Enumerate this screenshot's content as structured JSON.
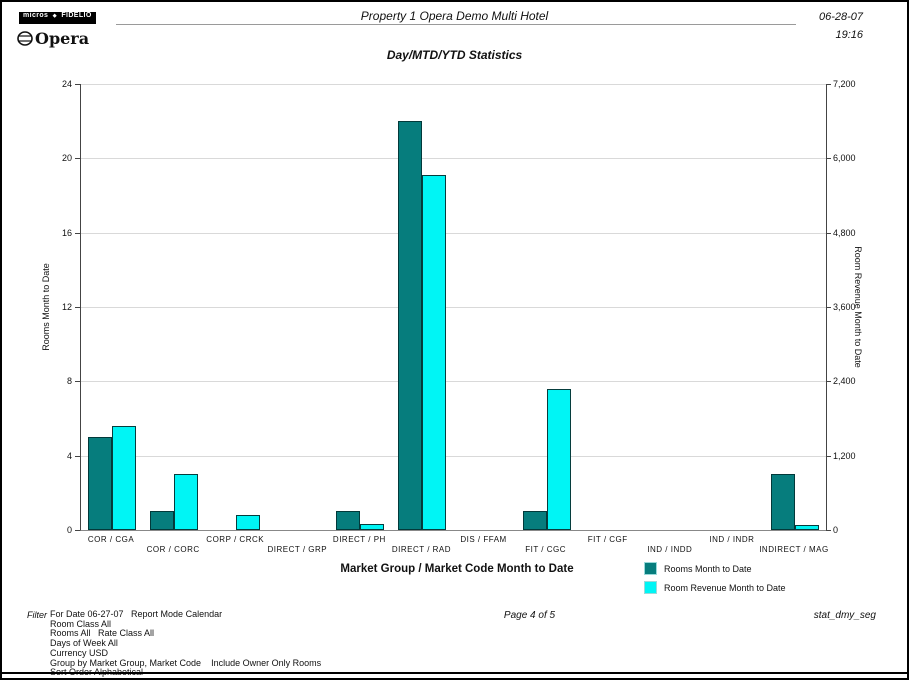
{
  "header": {
    "logo_micros": "micros",
    "logo_separator": "◆",
    "logo_fidelio": "FIDELIO",
    "logo_opera": "Opera",
    "property_title": "Property 1 Opera Demo Multi Hotel",
    "date": "06-28-07",
    "time": "19:16"
  },
  "chart_data": {
    "type": "bar",
    "title": "Day/MTD/YTD Statistics",
    "categories": [
      "COR / CGA",
      "COR / CORC",
      "CORP / CRCK",
      "DIRECT / GRP",
      "DIRECT / PH",
      "DIRECT / RAD",
      "DIS / FFAM",
      "FIT / CGC",
      "FIT / CGF",
      "IND / INDD",
      "IND / INDR",
      "INDIRECT / MAG"
    ],
    "series": [
      {
        "name": "Rooms Month to Date",
        "axis": "left",
        "color": "#067d7d",
        "values": [
          5,
          1,
          0,
          0,
          1,
          22,
          0,
          1,
          0,
          0,
          0,
          3
        ]
      },
      {
        "name": "Room Revenue Month to Date",
        "axis": "right",
        "color": "#00f5f5",
        "values": [
          1680,
          900,
          240,
          0,
          90,
          5730,
          0,
          2270,
          0,
          0,
          0,
          80
        ]
      }
    ],
    "xlabel": "Market Group / Market Code Month to Date",
    "left_axis": {
      "label": "Rooms Month to Date",
      "min": 0,
      "max": 24,
      "tick_labels": [
        "0",
        "4",
        "8",
        "12",
        "16",
        "20",
        "24"
      ]
    },
    "right_axis": {
      "label": "Room Revenue Month to Date",
      "min": 0,
      "max": 7200,
      "tick_labels": [
        "0",
        "1,200",
        "2,400",
        "3,600",
        "4,800",
        "6,000",
        "7,200"
      ]
    },
    "grid": true,
    "legend_position": "bottom-right"
  },
  "footer": {
    "filter_label": "Filter",
    "filter_lines": [
      "For Date 06-27-07   Report Mode Calendar",
      "Room Class All",
      "Rooms All   Rate Class All",
      "Days of Week All",
      "Currency USD",
      "Group by Market Group, Market Code    Include Owner Only Rooms",
      "Sort Order Alphabetical"
    ],
    "page_info": "Page 4 of 5",
    "report_id": "stat_dmy_seg"
  }
}
